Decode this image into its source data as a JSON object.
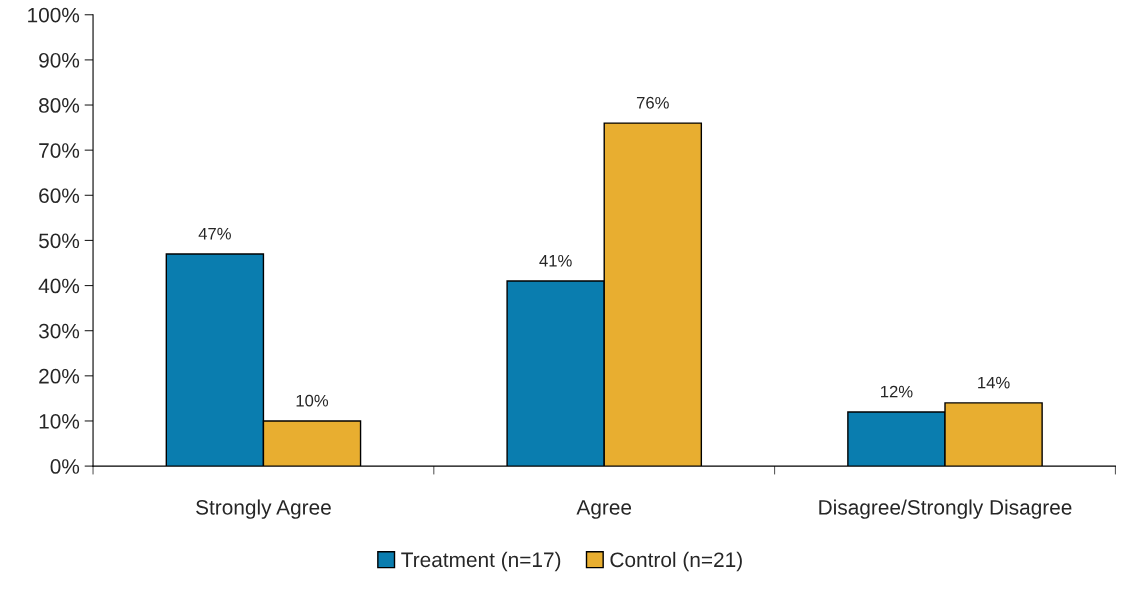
{
  "chart_data": {
    "type": "bar",
    "categories": [
      "Strongly Agree",
      "Agree",
      "Disagree/Strongly Disagree"
    ],
    "series": [
      {
        "name": "Treatment (n=17)",
        "color": "#0a7daf",
        "values": [
          47,
          41,
          12
        ],
        "value_labels": [
          "47%",
          "41%",
          "12%"
        ]
      },
      {
        "name": "Control (n=21)",
        "color": "#e8ae30",
        "values": [
          10,
          76,
          14
        ],
        "value_labels": [
          "10%",
          "76%",
          "14%"
        ]
      }
    ],
    "ylim": [
      0,
      100
    ],
    "yticks": [
      {
        "value": 0,
        "label": "0%"
      },
      {
        "value": 10,
        "label": "10%"
      },
      {
        "value": 20,
        "label": "20%"
      },
      {
        "value": 30,
        "label": "30%"
      },
      {
        "value": 40,
        "label": "40%"
      },
      {
        "value": 50,
        "label": "50%"
      },
      {
        "value": 60,
        "label": "60%"
      },
      {
        "value": 70,
        "label": "70%"
      },
      {
        "value": 80,
        "label": "80%"
      },
      {
        "value": 90,
        "label": "90%"
      },
      {
        "value": 100,
        "label": "100%"
      }
    ],
    "grid": false,
    "legend": "bottom"
  }
}
